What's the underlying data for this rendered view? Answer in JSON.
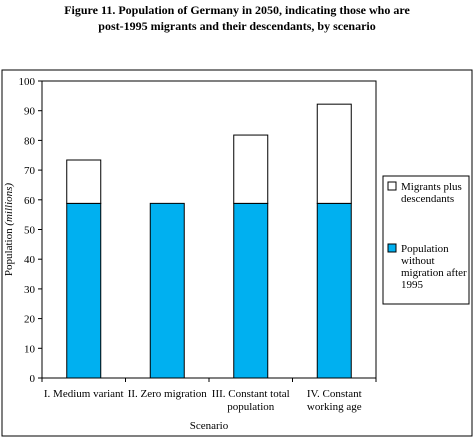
{
  "figure": {
    "title_line1": "Figure 11.  Population of Germany in 2050, indicating those who are",
    "title_line2": "post-1995 migrants and their descendants, by scenario"
  },
  "chart_data": {
    "type": "bar",
    "stacked": true,
    "categories": [
      [
        "I. Medium variant"
      ],
      [
        "II. Zero migration"
      ],
      [
        "III. Constant total",
        "population"
      ],
      [
        "IV. Constant",
        "working age"
      ]
    ],
    "series": [
      {
        "name": "Population without migration after 1995",
        "legend_lines": [
          "Population",
          "without",
          "migration after",
          "1995"
        ],
        "color": "#00b0f0",
        "values": [
          58.8,
          58.8,
          58.8,
          58.8
        ]
      },
      {
        "name": "Migrants plus descendants",
        "legend_lines": [
          "Migrants plus",
          "descendants"
        ],
        "color": "#ffffff",
        "values": [
          14.6,
          0,
          23.0,
          33.4
        ]
      }
    ],
    "ylabel": "Population",
    "ylabel_unit": "(millions)",
    "xlabel": "Scenario",
    "ylim": [
      0,
      100
    ],
    "yticks": [
      0,
      10,
      20,
      30,
      40,
      50,
      60,
      70,
      80,
      90,
      100
    ],
    "grid": false,
    "legend_position": "right"
  }
}
